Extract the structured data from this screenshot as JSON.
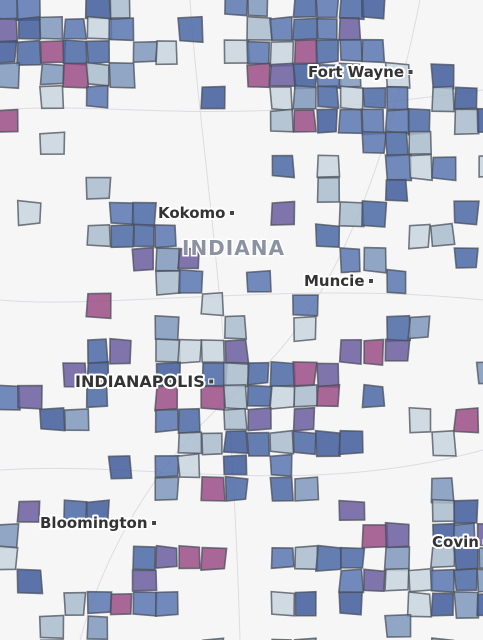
{
  "region": "INDIANA",
  "places": [
    "Fort Wayne",
    "Kokomo",
    "Muncie",
    "INDIANAPOLIS",
    "Bloomington",
    "Covin"
  ]
}
